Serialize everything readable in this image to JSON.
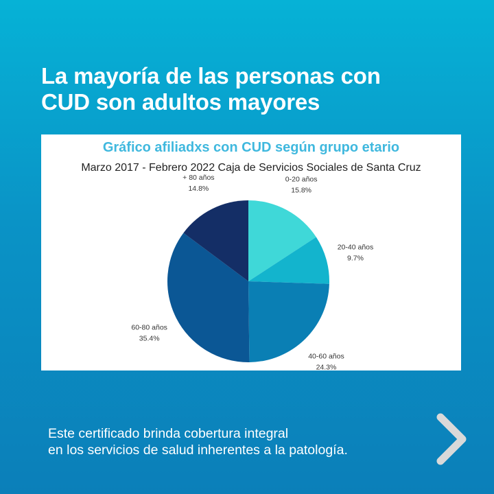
{
  "headline": {
    "line1": "La mayoría de las personas con",
    "line2": "CUD son adultos mayores"
  },
  "chart_data": {
    "type": "pie",
    "title": "Gráfico afiliadxs con CUD según grupo etario",
    "subtitle": "Marzo 2017 - Febrero 2022 Caja de Servicios Sociales de Santa Cruz",
    "slices": [
      {
        "label": "0-20 años",
        "value": 15.8,
        "value_label": "15.8%",
        "color": "#3fd8d8"
      },
      {
        "label": "20-40 años",
        "value": 9.7,
        "value_label": "9.7%",
        "color": "#13b4cd"
      },
      {
        "label": "40-60 años",
        "value": 24.3,
        "value_label": "24.3%",
        "color": "#0a7fb4"
      },
      {
        "label": "60-80 años",
        "value": 35.4,
        "value_label": "35.4%",
        "color": "#0b5795"
      },
      {
        "label": "+ 80 años",
        "value": 14.8,
        "value_label": "14.8%",
        "color": "#142e66"
      }
    ],
    "start": "12 o'clock",
    "direction": "clockwise"
  },
  "footer": {
    "line1": "Este certificado brinda cobertura integral",
    "line2": "en los servicios de salud inherentes a la patología."
  },
  "nav": {
    "next_icon": "chevron-right-icon",
    "arrow_color": "#d9d9d9"
  }
}
